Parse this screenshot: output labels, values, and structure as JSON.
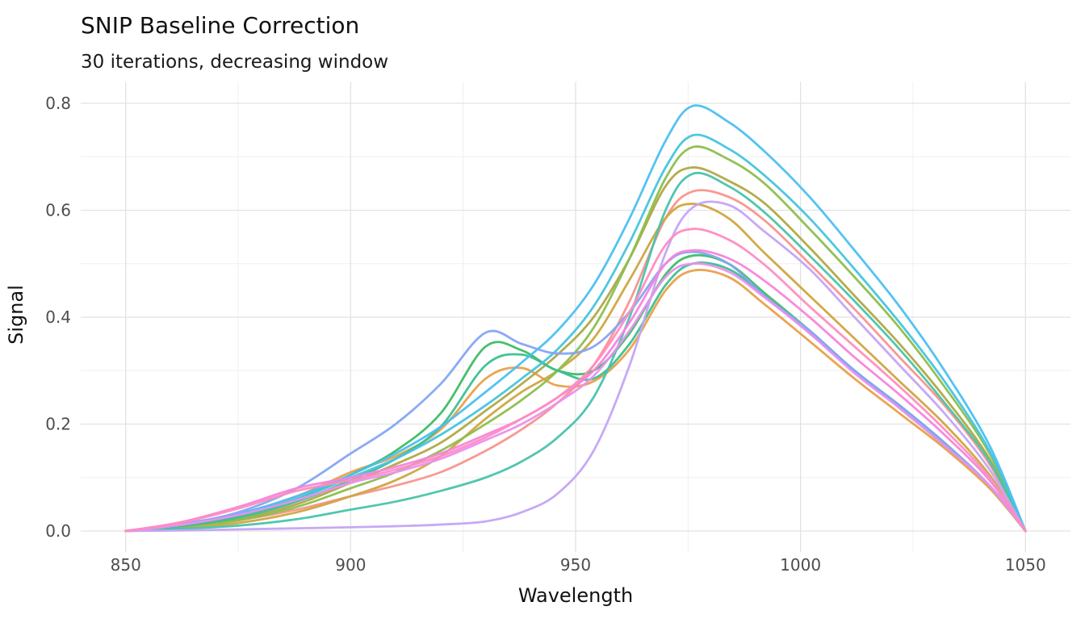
{
  "header": {
    "title": "SNIP Baseline Correction",
    "subtitle": "30 iterations, decreasing window"
  },
  "chart_data": {
    "type": "line",
    "title": "SNIP Baseline Correction",
    "subtitle": "30 iterations, decreasing window",
    "xlabel": "Wavelength",
    "ylabel": "Signal",
    "xlim": [
      850,
      1050
    ],
    "ylim": [
      0.0,
      0.8
    ],
    "x_ticks": [
      850,
      900,
      950,
      1000,
      1050
    ],
    "x_tick_labels": [
      "850",
      "900",
      "950",
      "1000",
      "1050"
    ],
    "x_minor_ticks": [
      875,
      925,
      975,
      1025
    ],
    "y_ticks": [
      0.0,
      0.2,
      0.4,
      0.6,
      0.8
    ],
    "y_tick_labels": [
      "0.0",
      "0.2",
      "0.4",
      "0.6",
      "0.8"
    ],
    "y_minor_ticks": [
      0.1,
      0.3,
      0.5,
      0.7
    ],
    "grid": true,
    "legend": "none",
    "x": [
      850,
      862,
      875,
      888,
      900,
      910,
      920,
      930,
      938,
      946,
      954,
      962,
      970,
      976,
      984,
      992,
      1002,
      1012,
      1022,
      1032,
      1042,
      1050
    ],
    "series": [
      {
        "name": "salmon",
        "color": "#F8938C",
        "values": [
          0,
          0.008,
          0.02,
          0.04,
          0.065,
          0.085,
          0.11,
          0.15,
          0.19,
          0.24,
          0.31,
          0.43,
          0.585,
          0.635,
          0.625,
          0.581,
          0.5,
          0.415,
          0.325,
          0.235,
          0.125,
          0
        ]
      },
      {
        "name": "orange",
        "color": "#E9A049",
        "values": [
          0,
          0.012,
          0.032,
          0.065,
          0.11,
          0.14,
          0.19,
          0.285,
          0.305,
          0.272,
          0.28,
          0.34,
          0.45,
          0.487,
          0.475,
          0.424,
          0.355,
          0.285,
          0.22,
          0.155,
          0.08,
          0
        ]
      },
      {
        "name": "gold",
        "color": "#CFA53F",
        "values": [
          0,
          0.006,
          0.015,
          0.035,
          0.065,
          0.095,
          0.14,
          0.21,
          0.26,
          0.3,
          0.36,
          0.47,
          0.585,
          0.612,
          0.585,
          0.52,
          0.44,
          0.36,
          0.28,
          0.2,
          0.105,
          0
        ]
      },
      {
        "name": "olive",
        "color": "#B0A843",
        "values": [
          0,
          0.009,
          0.022,
          0.05,
          0.09,
          0.125,
          0.165,
          0.225,
          0.275,
          0.33,
          0.4,
          0.51,
          0.645,
          0.68,
          0.655,
          0.613,
          0.53,
          0.44,
          0.35,
          0.25,
          0.135,
          0
        ]
      },
      {
        "name": "yellow-green",
        "color": "#8CBE4E",
        "values": [
          0,
          0.008,
          0.02,
          0.045,
          0.08,
          0.11,
          0.15,
          0.2,
          0.245,
          0.3,
          0.38,
          0.51,
          0.66,
          0.718,
          0.695,
          0.65,
          0.565,
          0.475,
          0.38,
          0.27,
          0.145,
          0
        ]
      },
      {
        "name": "green",
        "color": "#3DBC64",
        "values": [
          0,
          0.01,
          0.028,
          0.06,
          0.105,
          0.15,
          0.22,
          0.345,
          0.338,
          0.3,
          0.3,
          0.37,
          0.48,
          0.515,
          0.5,
          0.445,
          0.375,
          0.3,
          0.235,
          0.165,
          0.085,
          0
        ]
      },
      {
        "name": "emerald",
        "color": "#3BC08F",
        "values": [
          0,
          0.009,
          0.025,
          0.055,
          0.095,
          0.135,
          0.195,
          0.31,
          0.33,
          0.3,
          0.285,
          0.35,
          0.46,
          0.5,
          0.49,
          0.44,
          0.37,
          0.3,
          0.23,
          0.16,
          0.085,
          0
        ]
      },
      {
        "name": "teal",
        "color": "#48C3AC",
        "values": [
          0,
          0.004,
          0.01,
          0.022,
          0.04,
          0.055,
          0.075,
          0.1,
          0.13,
          0.175,
          0.25,
          0.4,
          0.6,
          0.668,
          0.645,
          0.596,
          0.515,
          0.43,
          0.34,
          0.24,
          0.13,
          0
        ]
      },
      {
        "name": "cyan",
        "color": "#45C4DE",
        "values": [
          0,
          0.012,
          0.03,
          0.06,
          0.1,
          0.135,
          0.18,
          0.235,
          0.285,
          0.34,
          0.42,
          0.54,
          0.68,
          0.74,
          0.715,
          0.665,
          0.585,
          0.49,
          0.39,
          0.28,
          0.15,
          0
        ]
      },
      {
        "name": "sky-blue",
        "color": "#4AC0F2",
        "values": [
          0,
          0.013,
          0.032,
          0.065,
          0.105,
          0.145,
          0.195,
          0.26,
          0.315,
          0.375,
          0.46,
          0.585,
          0.73,
          0.795,
          0.765,
          0.71,
          0.625,
          0.525,
          0.42,
          0.3,
          0.16,
          0
        ]
      },
      {
        "name": "periwinkle",
        "color": "#84A5F5",
        "values": [
          0,
          0.012,
          0.035,
          0.08,
          0.145,
          0.2,
          0.275,
          0.371,
          0.35,
          0.332,
          0.345,
          0.41,
          0.5,
          0.522,
          0.5,
          0.44,
          0.375,
          0.3,
          0.235,
          0.165,
          0.085,
          0
        ]
      },
      {
        "name": "lavender",
        "color": "#C4A4F4",
        "values": [
          0,
          0.001,
          0.003,
          0.005,
          0.007,
          0.009,
          0.012,
          0.018,
          0.035,
          0.07,
          0.15,
          0.31,
          0.52,
          0.605,
          0.61,
          0.56,
          0.49,
          0.4,
          0.31,
          0.22,
          0.115,
          0
        ]
      },
      {
        "name": "violet",
        "color": "#E990F1",
        "values": [
          0,
          0.011,
          0.03,
          0.058,
          0.09,
          0.11,
          0.135,
          0.17,
          0.2,
          0.24,
          0.29,
          0.375,
          0.475,
          0.5,
          0.485,
          0.437,
          0.37,
          0.295,
          0.23,
          0.16,
          0.085,
          0
        ]
      },
      {
        "name": "magenta",
        "color": "#F784DB",
        "values": [
          0,
          0.016,
          0.045,
          0.08,
          0.1,
          0.12,
          0.145,
          0.18,
          0.21,
          0.25,
          0.3,
          0.39,
          0.5,
          0.525,
          0.51,
          0.468,
          0.4,
          0.325,
          0.255,
          0.18,
          0.095,
          0
        ]
      },
      {
        "name": "pink",
        "color": "#FF8DBE",
        "values": [
          0,
          0.015,
          0.042,
          0.075,
          0.095,
          0.115,
          0.14,
          0.175,
          0.21,
          0.25,
          0.31,
          0.41,
          0.535,
          0.565,
          0.545,
          0.498,
          0.42,
          0.345,
          0.27,
          0.19,
          0.1,
          0
        ]
      }
    ]
  },
  "colors": {
    "background": "#ffffff",
    "grid_major": "#e2e2e2",
    "grid_minor": "#f0f0f0",
    "tick_label": "#4d4d4d",
    "text": "#111111"
  }
}
